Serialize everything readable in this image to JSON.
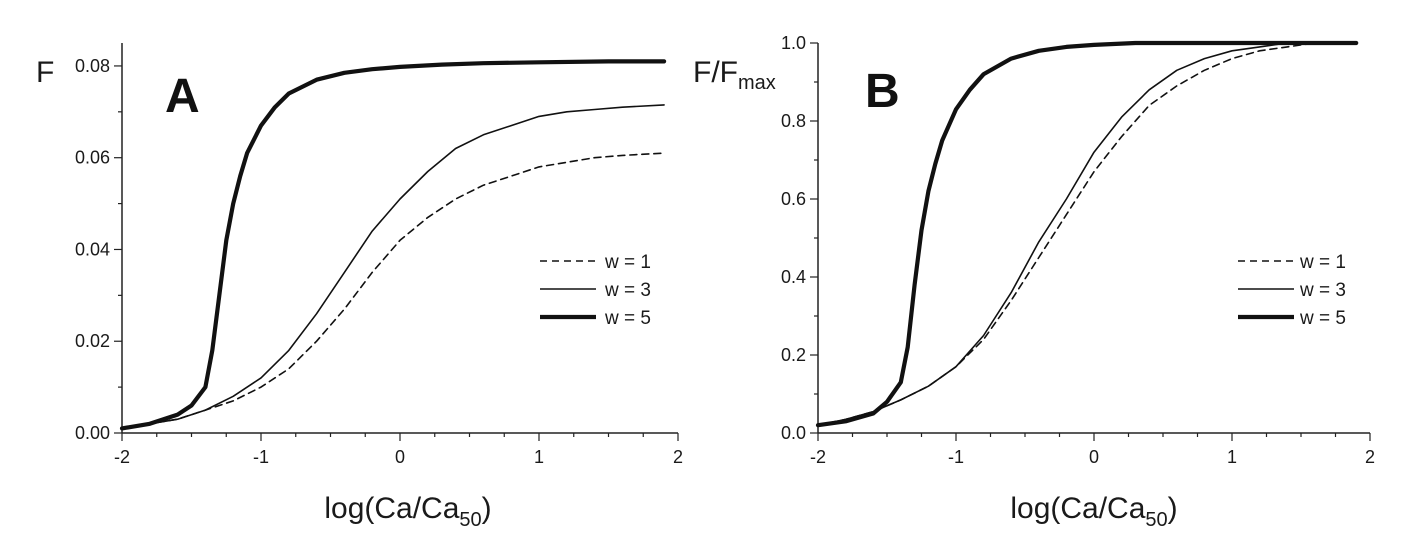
{
  "chart_data": [
    {
      "type": "line",
      "panel_label": "A",
      "ylabel": "F",
      "xlabel_main": "log(Ca/Ca",
      "xlabel_sub": "50",
      "xlabel_close": ")",
      "xlim": [
        -2,
        2
      ],
      "ylim": [
        0,
        0.085
      ],
      "xticks": [
        -2,
        -1,
        0,
        1,
        2
      ],
      "xtick_labels": [
        "-2",
        "-1",
        "0",
        "1",
        "2"
      ],
      "yticks": [
        0,
        0.02,
        0.04,
        0.06,
        0.08
      ],
      "ytick_labels": [
        "0.00",
        "0.02",
        "0.04",
        "0.06",
        "0.08"
      ],
      "legend_position": "right",
      "series": [
        {
          "name": "w = 1",
          "style": "dashed",
          "x": [
            -2,
            -1.8,
            -1.6,
            -1.4,
            -1.2,
            -1.0,
            -0.8,
            -0.6,
            -0.4,
            -0.2,
            0.0,
            0.2,
            0.4,
            0.6,
            0.8,
            1.0,
            1.2,
            1.4,
            1.6,
            1.9
          ],
          "y": [
            0.001,
            0.002,
            0.003,
            0.005,
            0.007,
            0.01,
            0.014,
            0.02,
            0.027,
            0.035,
            0.042,
            0.047,
            0.051,
            0.054,
            0.056,
            0.058,
            0.059,
            0.06,
            0.0605,
            0.061
          ]
        },
        {
          "name": "w = 3",
          "style": "solid",
          "x": [
            -2,
            -1.8,
            -1.6,
            -1.4,
            -1.2,
            -1.0,
            -0.8,
            -0.6,
            -0.4,
            -0.2,
            0.0,
            0.2,
            0.4,
            0.6,
            0.8,
            1.0,
            1.2,
            1.4,
            1.6,
            1.9
          ],
          "y": [
            0.001,
            0.002,
            0.003,
            0.005,
            0.008,
            0.012,
            0.018,
            0.026,
            0.035,
            0.044,
            0.051,
            0.057,
            0.062,
            0.065,
            0.067,
            0.069,
            0.07,
            0.0705,
            0.071,
            0.0715
          ]
        },
        {
          "name": "w = 5",
          "style": "thick",
          "x": [
            -2,
            -1.8,
            -1.6,
            -1.5,
            -1.4,
            -1.35,
            -1.3,
            -1.25,
            -1.2,
            -1.15,
            -1.1,
            -1.0,
            -0.9,
            -0.8,
            -0.6,
            -0.4,
            -0.2,
            0.0,
            0.3,
            0.6,
            1.0,
            1.5,
            1.9
          ],
          "y": [
            0.001,
            0.002,
            0.004,
            0.006,
            0.01,
            0.018,
            0.03,
            0.042,
            0.05,
            0.056,
            0.061,
            0.067,
            0.071,
            0.074,
            0.077,
            0.0785,
            0.0793,
            0.0798,
            0.0803,
            0.0806,
            0.0808,
            0.081,
            0.081
          ]
        }
      ]
    },
    {
      "type": "line",
      "panel_label": "B",
      "ylabel_main": "F/F",
      "ylabel_sub": "max",
      "xlabel_main": "log(Ca/Ca",
      "xlabel_sub": "50",
      "xlabel_close": ")",
      "xlim": [
        -2,
        2
      ],
      "ylim": [
        0,
        1.0
      ],
      "xticks": [
        -2,
        -1,
        0,
        1,
        2
      ],
      "xtick_labels": [
        "-2",
        "-1",
        "0",
        "1",
        "2"
      ],
      "yticks": [
        0,
        0.2,
        0.4,
        0.6,
        0.8,
        1.0
      ],
      "ytick_labels": [
        "0.0",
        "0.2",
        "0.4",
        "0.6",
        "0.8",
        "1.0"
      ],
      "legend_position": "right",
      "series": [
        {
          "name": "w = 1",
          "style": "dashed",
          "x": [
            -2,
            -1.8,
            -1.6,
            -1.4,
            -1.2,
            -1.0,
            -0.8,
            -0.6,
            -0.4,
            -0.2,
            0.0,
            0.2,
            0.4,
            0.6,
            0.8,
            1.0,
            1.2,
            1.4,
            1.6,
            1.9
          ],
          "y": [
            0.02,
            0.035,
            0.055,
            0.085,
            0.12,
            0.17,
            0.24,
            0.34,
            0.45,
            0.56,
            0.67,
            0.76,
            0.84,
            0.89,
            0.93,
            0.96,
            0.98,
            0.99,
            1.0,
            1.0
          ]
        },
        {
          "name": "w = 3",
          "style": "solid",
          "x": [
            -2,
            -1.8,
            -1.6,
            -1.4,
            -1.2,
            -1.0,
            -0.8,
            -0.6,
            -0.4,
            -0.2,
            0.0,
            0.2,
            0.4,
            0.6,
            0.8,
            1.0,
            1.2,
            1.4,
            1.6,
            1.9
          ],
          "y": [
            0.02,
            0.035,
            0.055,
            0.085,
            0.12,
            0.17,
            0.25,
            0.36,
            0.49,
            0.6,
            0.72,
            0.81,
            0.88,
            0.93,
            0.96,
            0.98,
            0.99,
            1.0,
            1.0,
            1.0
          ]
        },
        {
          "name": "w = 5",
          "style": "thick",
          "x": [
            -2,
            -1.8,
            -1.6,
            -1.5,
            -1.4,
            -1.35,
            -1.3,
            -1.25,
            -1.2,
            -1.15,
            -1.1,
            -1.0,
            -0.9,
            -0.8,
            -0.6,
            -0.4,
            -0.2,
            0.0,
            0.3,
            0.6,
            1.0,
            1.5,
            1.9
          ],
          "y": [
            0.02,
            0.03,
            0.05,
            0.08,
            0.13,
            0.22,
            0.38,
            0.52,
            0.62,
            0.69,
            0.75,
            0.83,
            0.88,
            0.92,
            0.96,
            0.98,
            0.99,
            0.995,
            1.0,
            1.0,
            1.0,
            1.0,
            1.0
          ]
        }
      ]
    }
  ]
}
